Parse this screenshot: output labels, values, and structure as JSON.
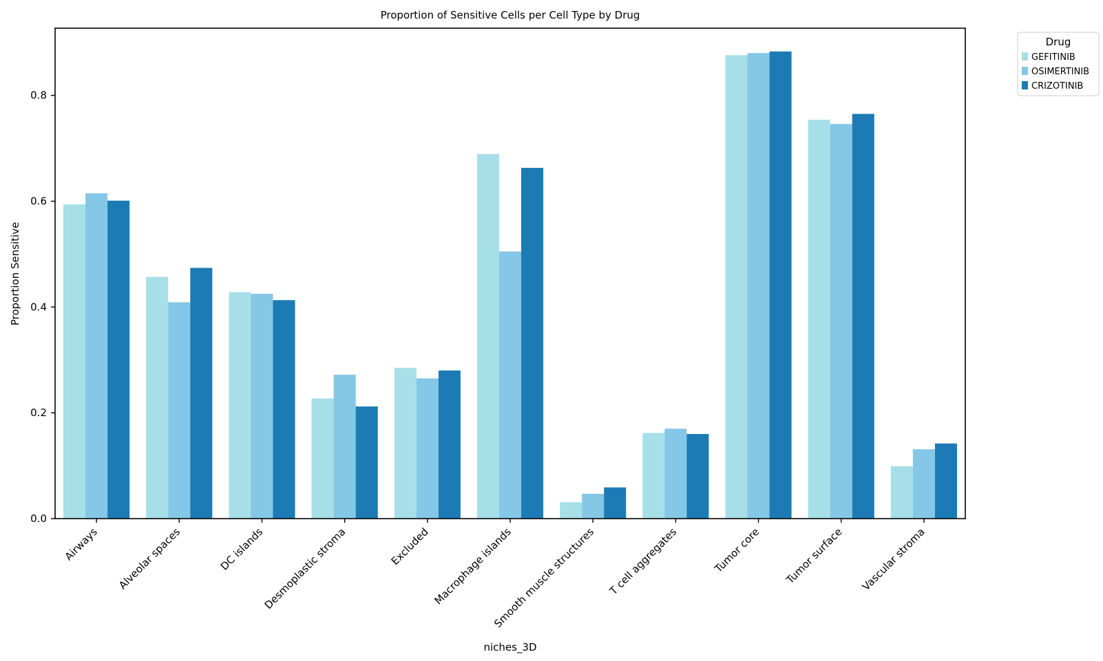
{
  "chart_data": {
    "type": "bar",
    "title": "Proportion of Sensitive Cells per Cell Type by Drug",
    "xlabel": "niches_3D",
    "ylabel": "Proportion Sensitive",
    "ylim": [
      0,
      0.927
    ],
    "yticks": [
      "0.0",
      "0.2",
      "0.4",
      "0.6",
      "0.8"
    ],
    "grid": false,
    "legend": {
      "title": "Drug",
      "placement": "outside-top-right"
    },
    "categories": [
      "Airways",
      "Alveolar spaces",
      "DC islands",
      "Desmoplastic stroma",
      "Excluded",
      "Macrophage islands",
      "Smooth muscle structures",
      "T cell aggregates",
      "Tumor core",
      "Tumor surface",
      "Vascular stroma"
    ],
    "series": [
      {
        "name": "GEFITINIB",
        "color": "#a6dfe8",
        "values": [
          0.594,
          0.457,
          0.428,
          0.227,
          0.285,
          0.689,
          0.031,
          0.162,
          0.876,
          0.754,
          0.099
        ]
      },
      {
        "name": "OSIMERTINIB",
        "color": "#85c7e6",
        "values": [
          0.615,
          0.409,
          0.425,
          0.272,
          0.265,
          0.505,
          0.047,
          0.17,
          0.88,
          0.746,
          0.131
        ]
      },
      {
        "name": "CRIZOTINIB",
        "color": "#1c7bb4",
        "values": [
          0.601,
          0.474,
          0.413,
          0.212,
          0.28,
          0.663,
          0.059,
          0.16,
          0.883,
          0.765,
          0.142
        ]
      }
    ]
  }
}
